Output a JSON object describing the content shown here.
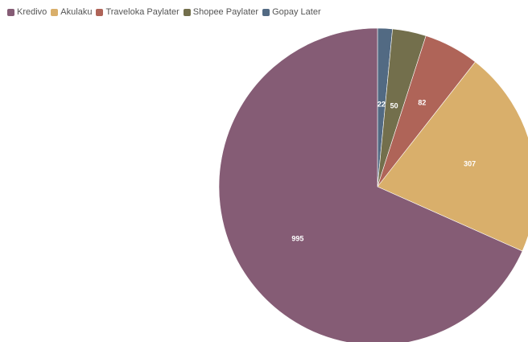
{
  "chart_data": {
    "type": "pie",
    "legend_position": "top-left",
    "categories": [
      "Kredivo",
      "Akulaku",
      "Traveloka Paylater",
      "Shopee Paylater",
      "Gopay Later"
    ],
    "values": [
      995,
      307,
      82,
      50,
      22
    ],
    "colors": [
      "#855c75",
      "#d9af6b",
      "#af6458",
      "#736f4c",
      "#526a83"
    ],
    "data_labels": [
      "995",
      "307",
      "82",
      "50",
      "22"
    ]
  }
}
